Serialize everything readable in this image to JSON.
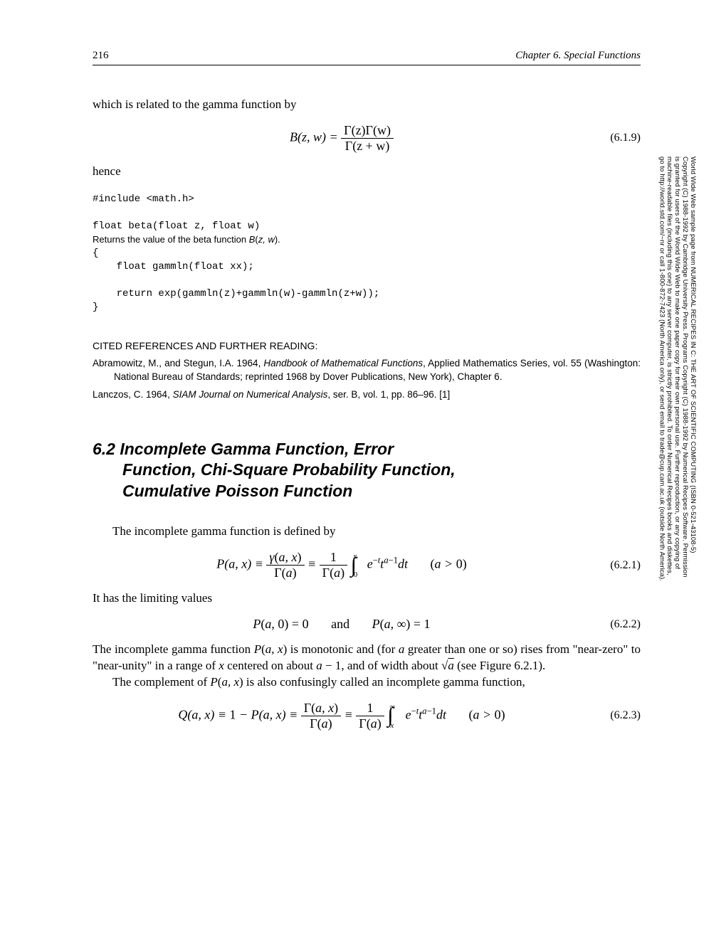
{
  "page_number": "216",
  "chapter_header": "Chapter 6.    Special Functions",
  "para_intro": "which is related to the gamma function by",
  "eq_619": {
    "lhs": "B(z, w) = ",
    "frac_top": "Γ(z)Γ(w)",
    "frac_bot": "Γ(z + w)",
    "num": "(6.1.9)"
  },
  "hence": "hence",
  "code": {
    "l1": "#include <math.h>",
    "l2": "float beta(float z, float w)",
    "desc": "Returns the value of the beta function B(z, w).",
    "l3": "{",
    "l4": "    float gammln(float xx);",
    "l5": "    return exp(gammln(z)+gammln(w)-gammln(z+w));",
    "l6": "}"
  },
  "refs_title": "CITED REFERENCES AND FURTHER READING:",
  "ref1_a": "Abramowitz, M., and Stegun, I.A. 1964, ",
  "ref1_i": "Handbook of Mathematical Functions",
  "ref1_b": ", Applied Mathematics Series, vol. 55 (Washington: National Bureau of Standards; reprinted 1968 by Dover Publications, New York), Chapter 6.",
  "ref2_a": "Lanczos, C. 1964, ",
  "ref2_i": "SIAM Journal on Numerical Analysis",
  "ref2_b": ", ser. B, vol. 1, pp. 86–96. [1]",
  "section_title_l1": "6.2 Incomplete Gamma Function, Error",
  "section_title_l2": "Function, Chi-Square Probability Function,",
  "section_title_l3": "Cumulative Poisson Function",
  "para_621_intro": "The incomplete gamma function is defined by",
  "eq_621_num": "(6.2.1)",
  "para_limit": "It has the limiting values",
  "eq_622": "P(a, 0) = 0        and        P(a, ∞) = 1",
  "eq_622_num": "(6.2.2)",
  "para_mono_a": "The incomplete gamma function P(a, x) is monotonic and (for a greater than one or so) rises from \"near-zero\" to \"near-unity\" in a range of x centered on about a − 1, and of width about √a (see Figure 6.2.1).",
  "para_comp": "The complement of P(a, x) is also confusingly called an incomplete gamma function,",
  "eq_623_num": "(6.2.3)",
  "side_l1": "World Wide Web sample page from NUMERICAL RECIPES IN C: THE ART OF SCIENTIFIC COMPUTING (ISBN 0-521-43108-5)",
  "side_l2": "Copyright (C) 1988-1992 by Cambridge University Press. Programs Copyright (C) 1988-1992 by Numerical Recipes Software. Permission",
  "side_l3": "is granted for users of the World Wide Web to make one paper copy for their own personal use. Further reproduction, or any copying of",
  "side_l4": "machine-readable files (including this one) to any server computer, is strictly prohibited. To order Numerical Recipes books and diskettes,",
  "side_l5": "go to http://world.std.com/~nr or call 1-800-872-7423 (North America only), or send email to trade@cup.cam.ac.uk (outside North America)."
}
